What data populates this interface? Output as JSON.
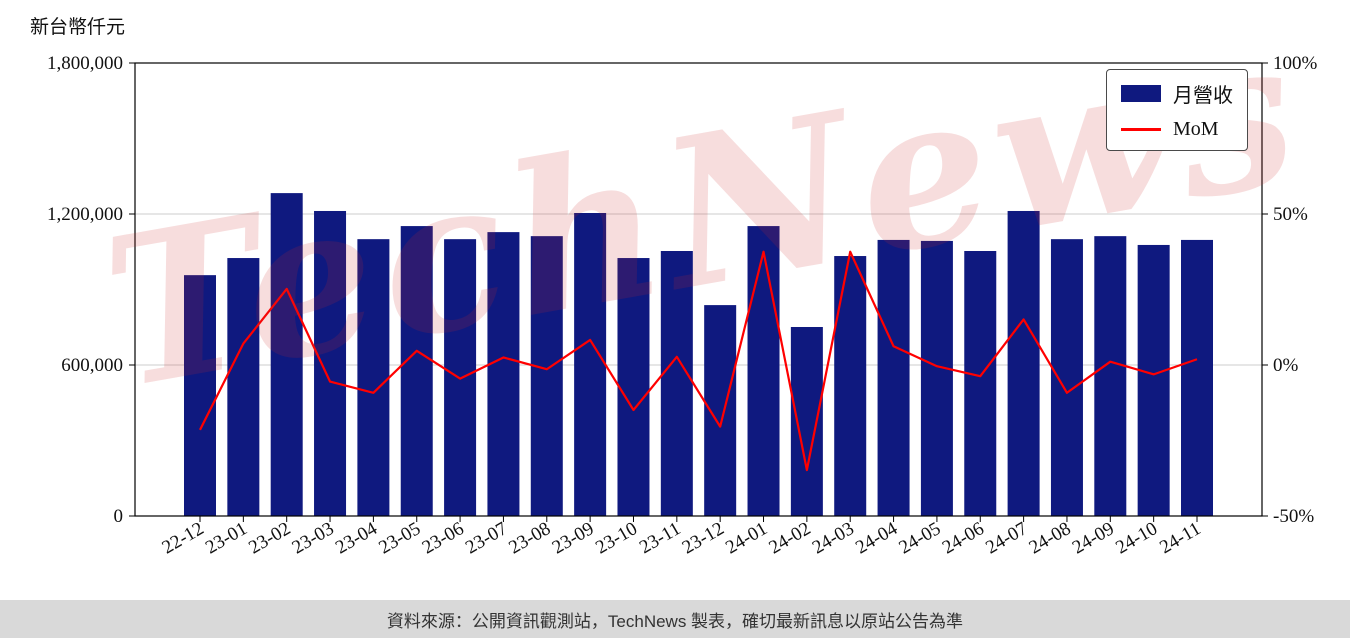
{
  "chart_data": {
    "type": "bar",
    "title": "",
    "unit_label": "新台幣仟元",
    "watermark": "TechNews",
    "footer": "資料來源：公開資訊觀測站，TechNews 製表，確切最新訊息以原站公告為準",
    "categories": [
      "22-12",
      "23-01",
      "23-02",
      "23-03",
      "23-04",
      "23-05",
      "23-06",
      "23-07",
      "23-08",
      "23-09",
      "23-10",
      "23-11",
      "23-12",
      "24-01",
      "24-02",
      "24-03",
      "24-04",
      "24-05",
      "24-06",
      "24-07",
      "24-08",
      "24-09",
      "24-10",
      "24-11"
    ],
    "series": [
      {
        "name": "月營收",
        "type": "bar",
        "axis": "left",
        "color": "#0f197f",
        "values": [
          957000,
          1025000,
          1283000,
          1212000,
          1100000,
          1152000,
          1100000,
          1128000,
          1112000,
          1204000,
          1025000,
          1053000,
          838000,
          1152000,
          751000,
          1033000,
          1097000,
          1093000,
          1053000,
          1212000,
          1100000,
          1112000,
          1077000,
          1097000
        ]
      },
      {
        "name": "MoM",
        "type": "line",
        "axis": "right",
        "color": "#ff0000",
        "values": [
          -21.5,
          7.1,
          25.2,
          -5.5,
          -9.2,
          4.7,
          -4.5,
          2.5,
          -1.4,
          8.3,
          -14.9,
          2.7,
          -20.4,
          37.5,
          -34.8,
          37.5,
          6.2,
          -0.4,
          -3.7,
          15.1,
          -9.2,
          1.1,
          -3.1,
          1.9
        ]
      }
    ],
    "left_axis": {
      "min": 0,
      "max": 1800000,
      "tick_values": [
        0,
        600000,
        1200000,
        1800000
      ],
      "tick_labels": [
        "0",
        "600,000",
        "1,200,000",
        "1,800,000"
      ]
    },
    "right_axis": {
      "min": -50,
      "max": 100,
      "tick_values": [
        -50,
        0,
        50,
        100
      ],
      "tick_labels": [
        "-50%",
        "0%",
        "50%",
        "100%"
      ]
    },
    "legend": {
      "position": "top-right",
      "entries": [
        "月營收",
        "MoM"
      ]
    },
    "grid": true,
    "colors": {
      "gridline": "#cccccc",
      "axis": "#000000",
      "footer_bg": "#d9d9d9",
      "watermark": "rgba(205,45,45,0.16)"
    }
  }
}
